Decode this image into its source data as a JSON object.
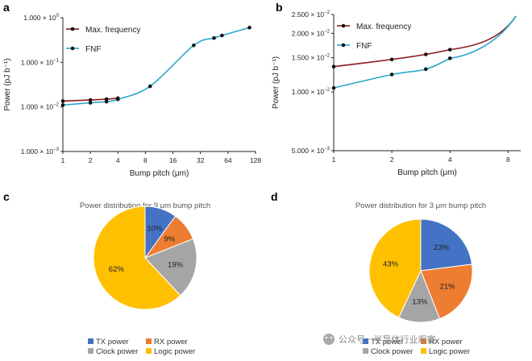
{
  "chart_data": [
    {
      "id": "a",
      "panel_label": "a",
      "type": "line",
      "xlabel": "Bump pitch (μm)",
      "ylabel": "Power (pJ b⁻¹)",
      "xscale": "log",
      "yscale": "log",
      "xticks": [
        1,
        2,
        4,
        8,
        16,
        32,
        64,
        128
      ],
      "xlim": [
        1,
        128
      ],
      "yticks": [
        {
          "value": 0.001,
          "label": "1.000 × 10",
          "exp": "−3"
        },
        {
          "value": 0.01,
          "label": "1.000 × 10",
          "exp": "−2"
        },
        {
          "value": 0.1,
          "label": "1.000 × 10",
          "exp": "−1"
        },
        {
          "value": 1,
          "label": "1.000 × 10",
          "exp": "0"
        }
      ],
      "ylim": [
        0.001,
        1
      ],
      "legend_position": "top-left",
      "series": [
        {
          "name": "Max. frequency",
          "color": "#8b1a1a",
          "x": [
            1,
            2,
            3,
            4
          ],
          "y": [
            0.0135,
            0.0143,
            0.0149,
            0.0157
          ]
        },
        {
          "name": "FNF",
          "color": "#29a8cc",
          "x": [
            1,
            2,
            3,
            4,
            9,
            27,
            45,
            55,
            110
          ],
          "y": [
            0.011,
            0.0124,
            0.0131,
            0.0148,
            0.029,
            0.24,
            0.35,
            0.4,
            0.6
          ]
        }
      ]
    },
    {
      "id": "b",
      "panel_label": "b",
      "type": "line",
      "xlabel": "Bump pitch (μm)",
      "ylabel": "Power (pJ b⁻¹)",
      "xscale": "log",
      "yscale": "log",
      "xticks": [
        1,
        2,
        4,
        8
      ],
      "xlim": [
        1,
        9.3
      ],
      "yticks": [
        {
          "value": 0.005,
          "label": "5.000 × 10",
          "exp": "−3"
        },
        {
          "value": 0.01,
          "label": "1.000 × 10",
          "exp": "−2"
        },
        {
          "value": 0.015,
          "label": "1.500 × 10",
          "exp": "−2"
        },
        {
          "value": 0.02,
          "label": "2.000 × 10",
          "exp": "−2"
        },
        {
          "value": 0.025,
          "label": "2.500 × 10",
          "exp": "−2"
        }
      ],
      "ylim": [
        0.005,
        0.025
      ],
      "legend_position": "top-left",
      "series": [
        {
          "name": "Max. frequency",
          "color": "#8b1a1a",
          "x": [
            1,
            2,
            3,
            4
          ],
          "y": [
            0.0135,
            0.0147,
            0.0156,
            0.0165
          ]
        },
        {
          "name": "FNF",
          "color": "#29a8cc",
          "x": [
            1,
            2,
            3,
            4
          ],
          "y": [
            0.0105,
            0.0123,
            0.0131,
            0.0149
          ]
        }
      ]
    },
    {
      "id": "c",
      "panel_label": "c",
      "type": "pie",
      "title": "Power distribution for 9 μm bump pitch",
      "slices": [
        {
          "label": "TX power",
          "value": 10,
          "text": "10%",
          "color": "#4472c4"
        },
        {
          "label": "RX power",
          "value": 9,
          "text": "9%",
          "color": "#ed7d31"
        },
        {
          "label": "Clock power",
          "value": 19,
          "text": "19%",
          "color": "#a5a5a5"
        },
        {
          "label": "Logic power",
          "value": 62,
          "text": "62%",
          "color": "#ffc000"
        }
      ]
    },
    {
      "id": "d",
      "panel_label": "d",
      "type": "pie",
      "title": "Power distribution for 3 μm bump pitch",
      "slices": [
        {
          "label": "TX power",
          "value": 23,
          "text": "23%",
          "color": "#4472c4"
        },
        {
          "label": "RX power",
          "value": 21,
          "text": "21%",
          "color": "#ed7d31"
        },
        {
          "label": "Clock power",
          "value": 13,
          "text": "13%",
          "color": "#a5a5a5"
        },
        {
          "label": "Logic power",
          "value": 43,
          "text": "43%",
          "color": "#ffc000"
        }
      ]
    }
  ],
  "watermark": "公众号 · 半导体行业观察"
}
